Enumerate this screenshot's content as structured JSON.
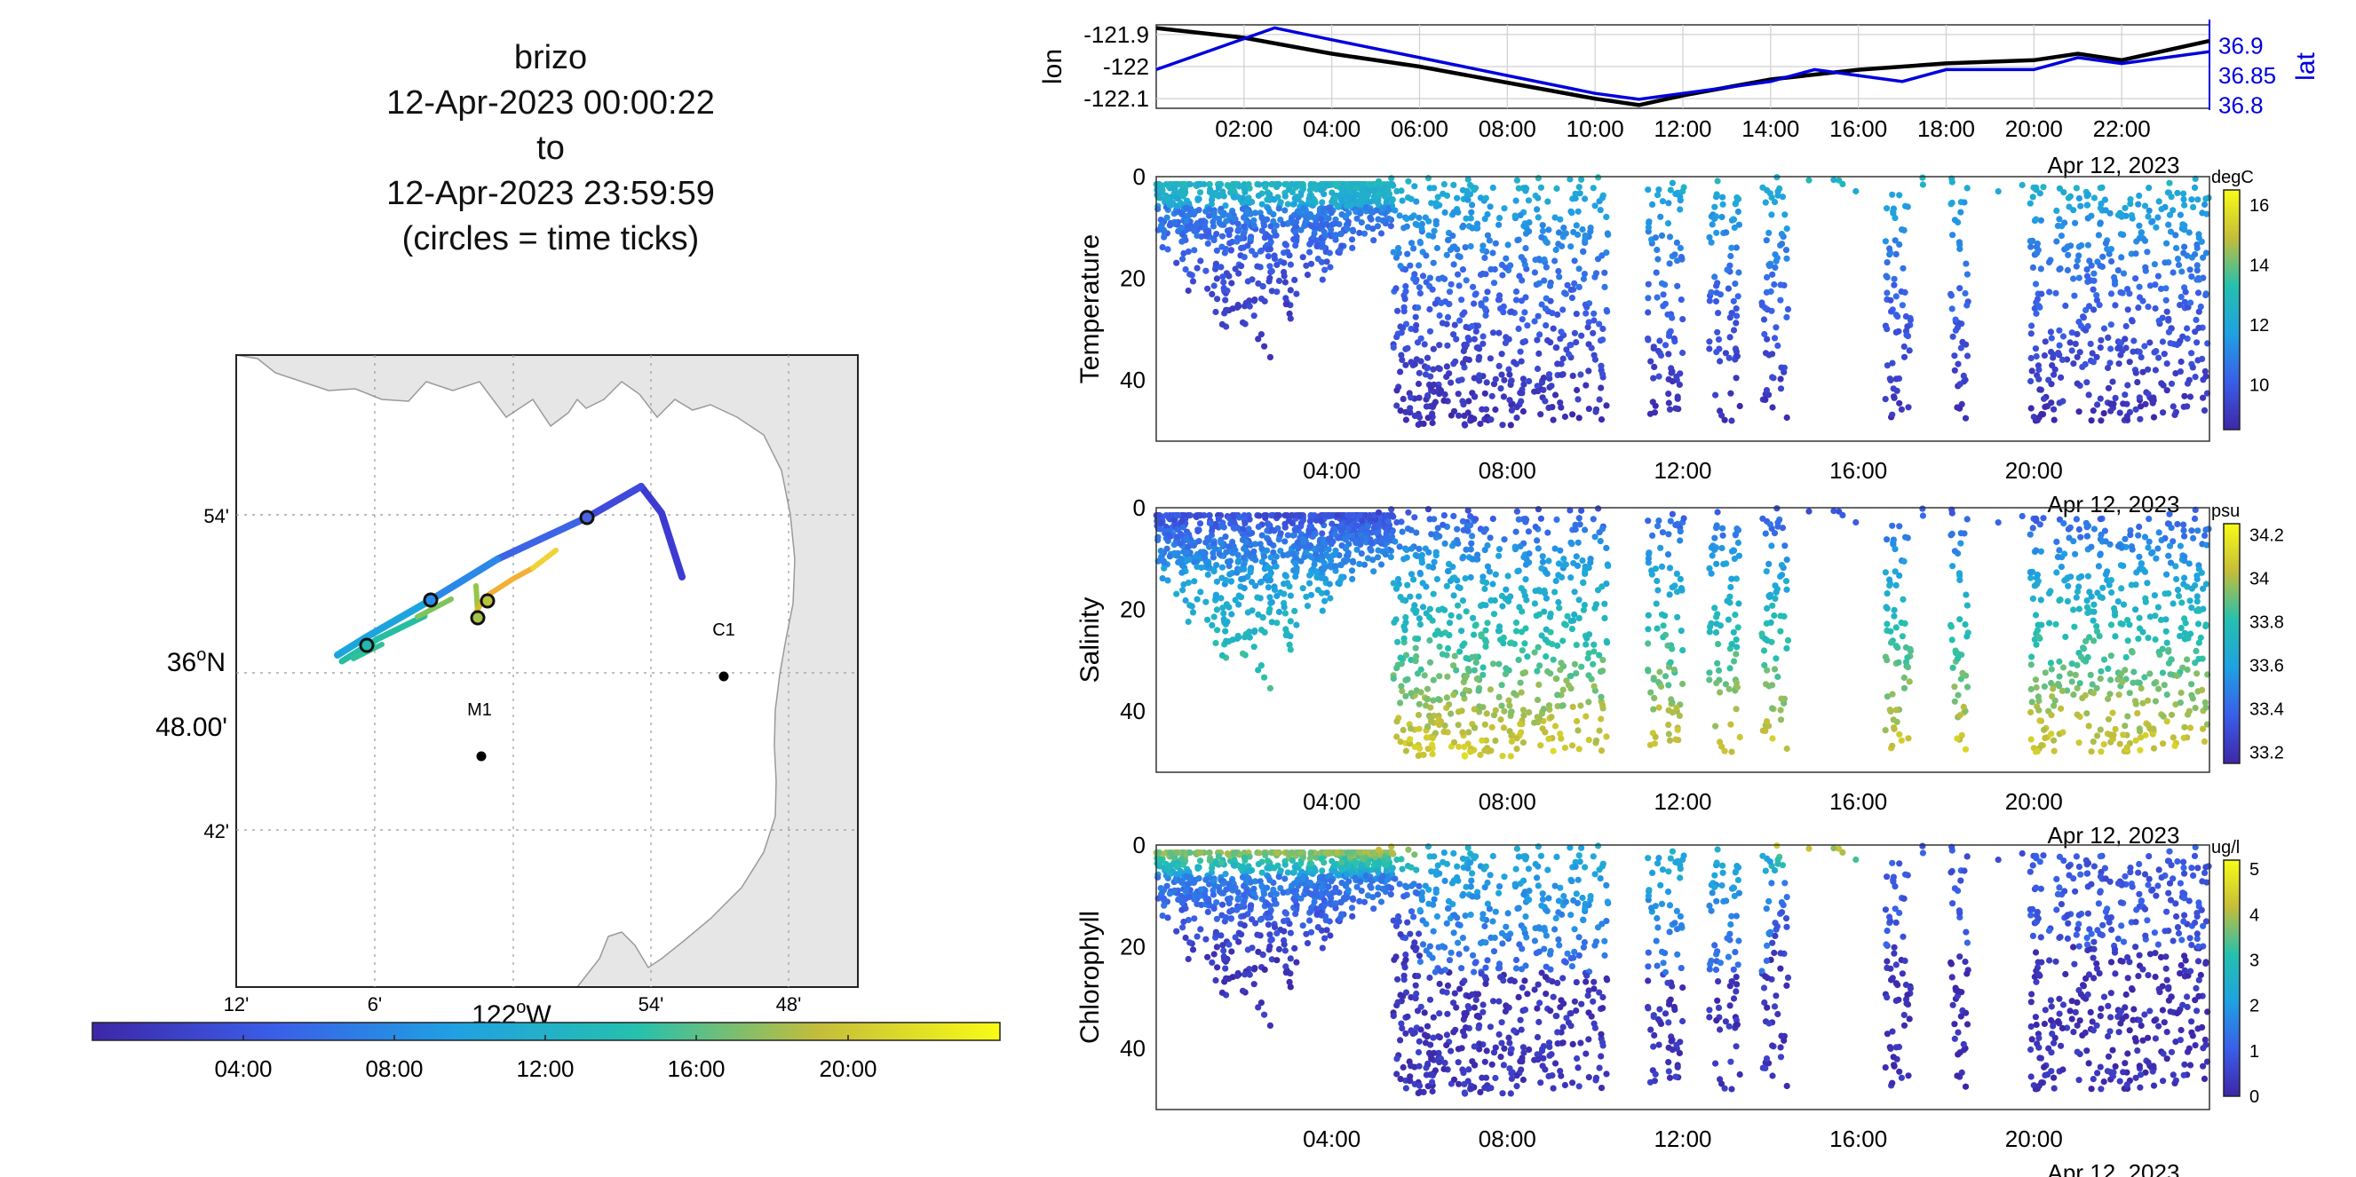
{
  "title_lines": [
    "brizo",
    "12-Apr-2023 00:00:22",
    "to",
    "12-Apr-2023 23:59:59",
    "(circles = time ticks)"
  ],
  "map": {
    "lat_ticks": [
      "54'",
      "48.00'",
      "42'"
    ],
    "lat_label": "36",
    "lat_label_sup": "o",
    "lat_label_suffix": "N",
    "lon_ticks": [
      "12'",
      "6'",
      "54'",
      "48'"
    ],
    "lon_label": "122",
    "lon_label_sup": "o",
    "lon_label_suffix": "W",
    "stations": [
      "M1",
      "C1"
    ],
    "track_start_color": "#3d3ad1",
    "track_end_color": "#f6e120",
    "land_color": "#e6e6e6"
  },
  "colorbars": {
    "time": {
      "ticks": [
        "04:00",
        "08:00",
        "12:00",
        "16:00",
        "20:00"
      ]
    },
    "temperature": {
      "unit": "degC",
      "ticks": [
        "16",
        "14",
        "12",
        "10"
      ]
    },
    "salinity": {
      "unit": "psu",
      "ticks": [
        "34.2",
        "34",
        "33.8",
        "33.6",
        "33.4",
        "33.2"
      ]
    },
    "chlorophyll": {
      "unit": "ug/l",
      "ticks": [
        "5",
        "4",
        "3",
        "2",
        "1",
        "0"
      ]
    }
  },
  "chart_data": [
    {
      "type": "line",
      "title": "",
      "xlabel": "Apr 12, 2023",
      "ylabel": "lon",
      "ylabel_right": "lat",
      "x_ticks": [
        "02:00",
        "04:00",
        "06:00",
        "08:00",
        "10:00",
        "12:00",
        "14:00",
        "16:00",
        "18:00",
        "20:00",
        "22:00"
      ],
      "y_ticks_left": [
        "-121.9",
        "-122",
        "-122.1"
      ],
      "y_ticks_right": [
        "36.9",
        "36.85",
        "36.8"
      ],
      "grid": true,
      "series": [
        {
          "name": "lon",
          "color": "#000000",
          "x": [
            0,
            2,
            4,
            6,
            8,
            10,
            11,
            12,
            14,
            16,
            18,
            20,
            21,
            22,
            23,
            24
          ],
          "values": [
            -121.88,
            -121.91,
            -121.96,
            -122.0,
            -122.05,
            -122.1,
            -122.12,
            -122.09,
            -122.04,
            -122.01,
            -121.99,
            -121.98,
            -121.96,
            -121.98,
            -121.95,
            -121.92
          ]
        },
        {
          "name": "lat",
          "color": "#0000dd",
          "x": [
            0,
            2.7,
            4,
            6,
            8,
            10,
            11,
            12,
            14,
            15,
            16,
            17,
            18,
            20,
            21,
            22,
            23,
            24
          ],
          "values": [
            36.86,
            36.93,
            36.91,
            36.88,
            36.85,
            36.82,
            36.81,
            36.82,
            36.84,
            36.86,
            36.85,
            36.84,
            36.86,
            36.86,
            36.88,
            36.87,
            36.88,
            36.89
          ]
        }
      ]
    },
    {
      "type": "scatter",
      "title": "",
      "xlabel": "Apr 12, 2023",
      "ylabel": "Temperature",
      "x_ticks": [
        "04:00",
        "08:00",
        "12:00",
        "16:00",
        "20:00"
      ],
      "y_ticks": [
        "0",
        "20",
        "40"
      ],
      "ylim": [
        0,
        52
      ],
      "color_unit": "degC",
      "clim": [
        8.5,
        16.5
      ],
      "surface_value": 13.0,
      "deep_value": 9.0
    },
    {
      "type": "scatter",
      "title": "",
      "xlabel": "Apr 12, 2023",
      "ylabel": "Salinity",
      "x_ticks": [
        "04:00",
        "08:00",
        "12:00",
        "16:00",
        "20:00"
      ],
      "y_ticks": [
        "0",
        "20",
        "40"
      ],
      "ylim": [
        0,
        52
      ],
      "color_unit": "psu",
      "clim": [
        33.15,
        34.25
      ],
      "surface_value": 33.25,
      "deep_value": 34.0
    },
    {
      "type": "scatter",
      "title": "",
      "xlabel": "Apr 12, 2023",
      "ylabel": "Chlorophyll",
      "x_ticks": [
        "04:00",
        "08:00",
        "12:00",
        "16:00",
        "20:00"
      ],
      "y_ticks": [
        "0",
        "20",
        "40"
      ],
      "ylim": [
        0,
        52
      ],
      "color_unit": "ug/l",
      "clim": [
        0,
        5.2
      ],
      "surface_value": 4.5,
      "deep_value": 0.3
    }
  ]
}
